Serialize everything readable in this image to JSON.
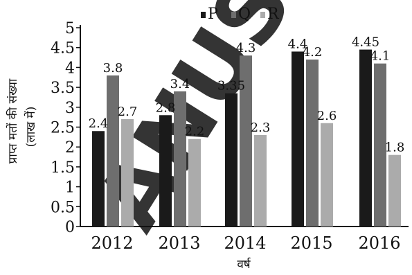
{
  "chart_data": {
    "type": "bar",
    "categories": [
      "2012",
      "2013",
      "2014",
      "2015",
      "2016"
    ],
    "series": [
      {
        "name": "P",
        "values": [
          2.4,
          2.8,
          3.35,
          4.4,
          4.45
        ],
        "labels": [
          "2.4",
          "2.8",
          "3.35",
          "4.4",
          "4.45"
        ]
      },
      {
        "name": "Q",
        "values": [
          3.8,
          3.4,
          4.3,
          4.2,
          4.1
        ],
        "labels": [
          "3.8",
          "3.4",
          "4.3",
          "4.2",
          "4.1"
        ]
      },
      {
        "name": "R",
        "values": [
          2.7,
          2.2,
          2.3,
          2.6,
          1.8
        ],
        "labels": [
          "2.7",
          "2.2",
          "2.3",
          "2.6",
          "1.8"
        ]
      }
    ],
    "series_colors": [
      "#1a1a1a",
      "#6e6e6e",
      "#ababab"
    ],
    "ylim": [
      0,
      5
    ],
    "yticks": [
      "0",
      "0.5",
      "1",
      "1.5",
      "2",
      "2.5",
      "3",
      "3.5",
      "4",
      "4.5",
      "5"
    ],
    "xlabel": "वर्ष",
    "ylabel": "प्राप्त मतों की संख्या",
    "ylabel_unit": "(लाख में)",
    "legend_position": "top-center",
    "grid": false
  },
  "watermark": {
    "text": "ANUS",
    "color": "#7a7a7a"
  }
}
